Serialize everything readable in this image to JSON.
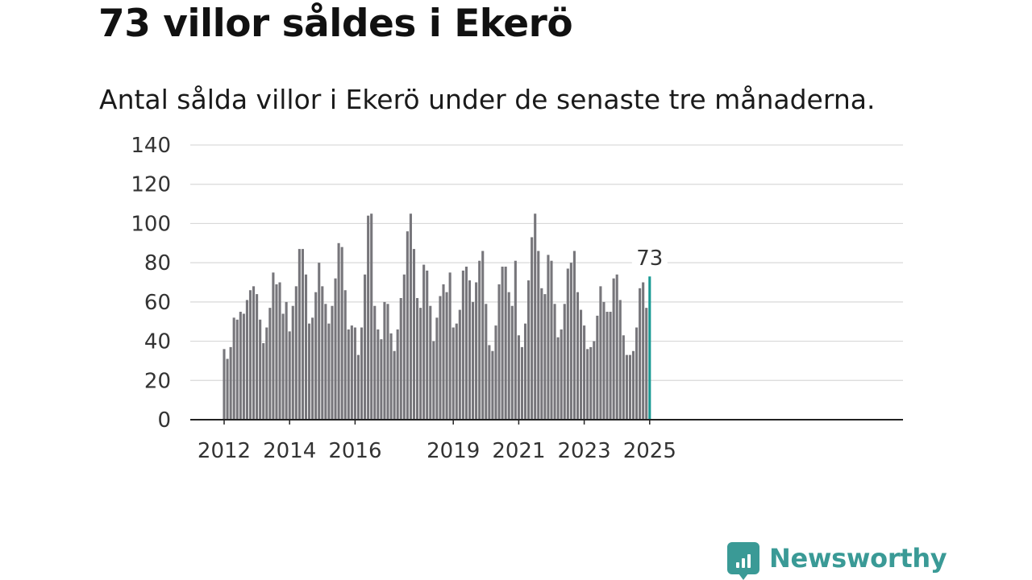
{
  "title": "73 villor såldes i Ekerö",
  "subtitle": "Antal sålda villor i Ekerö under de senaste tre månaderna.",
  "logo_text": "Newsworthy",
  "colors": {
    "bar": "#77767b",
    "highlight": "#1a9a94",
    "grid": "#d9d9d9",
    "axis": "#222222",
    "brand": "#3a9a96"
  },
  "chart_data": {
    "type": "bar",
    "title": "73 villor såldes i Ekerö",
    "subtitle": "Antal sålda villor i Ekerö under de senaste tre månaderna.",
    "xlabel": "",
    "ylabel": "",
    "ylim": [
      0,
      140
    ],
    "yticks": [
      0,
      20,
      40,
      60,
      80,
      100,
      120,
      140
    ],
    "grid": true,
    "xtick_labels": [
      {
        "label": "2012",
        "index": 0
      },
      {
        "label": "2014",
        "index": 20
      },
      {
        "label": "2016",
        "index": 40
      },
      {
        "label": "2019",
        "index": 70
      },
      {
        "label": "2021",
        "index": 90
      },
      {
        "label": "2023",
        "index": 110
      },
      {
        "label": "2025",
        "index": 130
      }
    ],
    "gaps_after_index": [
      19,
      69
    ],
    "highlight_label": "73",
    "series": [
      {
        "values": [
          36,
          31,
          37,
          52,
          51,
          55,
          54,
          61,
          66,
          68,
          64,
          51,
          39,
          47,
          57,
          75,
          69,
          70,
          54,
          60,
          45,
          58,
          68,
          87,
          87,
          74,
          49,
          52,
          65,
          80,
          68,
          59,
          49,
          58,
          72,
          90,
          88,
          66,
          46,
          48,
          47,
          33,
          47,
          74,
          104,
          105,
          58,
          46,
          41,
          60,
          59,
          44,
          35,
          46,
          62,
          74,
          96,
          105,
          87,
          62,
          57,
          79,
          76,
          58,
          40,
          52,
          63,
          69,
          65,
          75,
          47,
          49,
          56,
          76,
          78,
          71,
          60,
          70,
          81,
          86,
          59,
          38,
          35,
          48,
          69,
          78,
          78,
          65,
          58,
          81,
          43,
          37,
          49,
          71,
          93,
          105,
          86,
          67,
          64,
          84,
          81,
          59,
          42,
          46,
          59,
          77,
          80,
          86,
          65,
          56,
          48,
          36,
          37,
          40,
          53,
          68,
          60,
          55,
          55,
          72,
          74,
          61,
          43,
          33,
          33,
          35,
          47,
          67,
          70,
          57,
          73
        ]
      }
    ]
  }
}
